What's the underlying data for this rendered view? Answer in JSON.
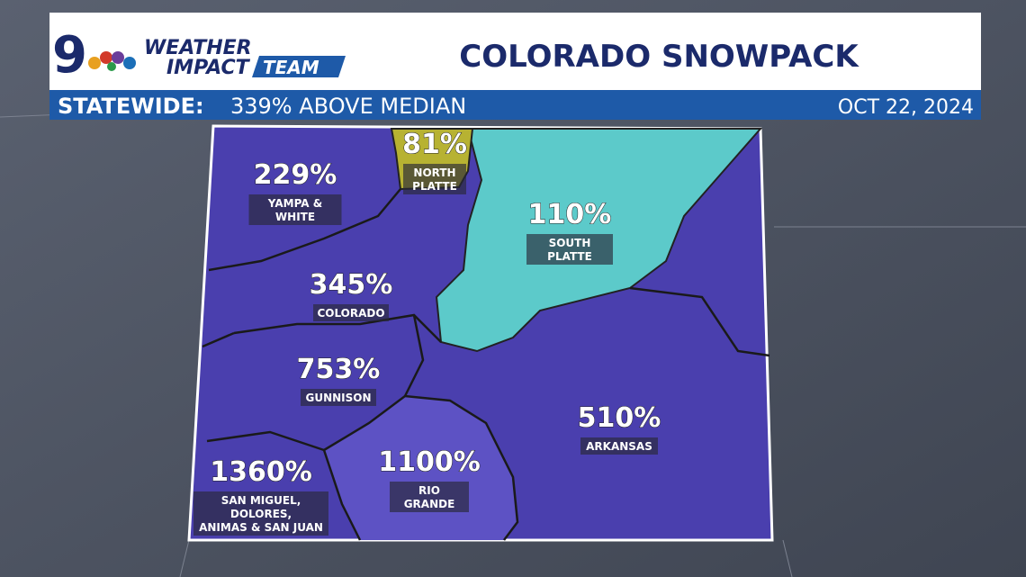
{
  "header": {
    "logo": "9",
    "brand_top": "WEATHER",
    "brand_left": "IMPACT",
    "brand_right": "TEAM",
    "title": "COLORADO SNOWPACK"
  },
  "subheader": {
    "label": "STATEWIDE:",
    "value": "339% ABOVE MEDIAN",
    "date": "OCT 22, 2024"
  },
  "regions": [
    {
      "value": "229%",
      "name": [
        "YAMPA &",
        "WHITE"
      ]
    },
    {
      "value": "81%",
      "name": [
        "NORTH",
        "PLATTE"
      ]
    },
    {
      "value": "110%",
      "name": [
        "SOUTH",
        "PLATTE"
      ]
    },
    {
      "value": "345%",
      "name": [
        "COLORADO"
      ]
    },
    {
      "value": "753%",
      "name": [
        "GUNNISON"
      ]
    },
    {
      "value": "510%",
      "name": [
        "ARKANSAS"
      ]
    },
    {
      "value": "1360%",
      "name": [
        "SAN MIGUEL,",
        "DOLORES,",
        "ANIMAS & SAN JUAN"
      ]
    },
    {
      "value": "1100%",
      "name": [
        "RIO",
        "GRANDE"
      ]
    }
  ]
}
